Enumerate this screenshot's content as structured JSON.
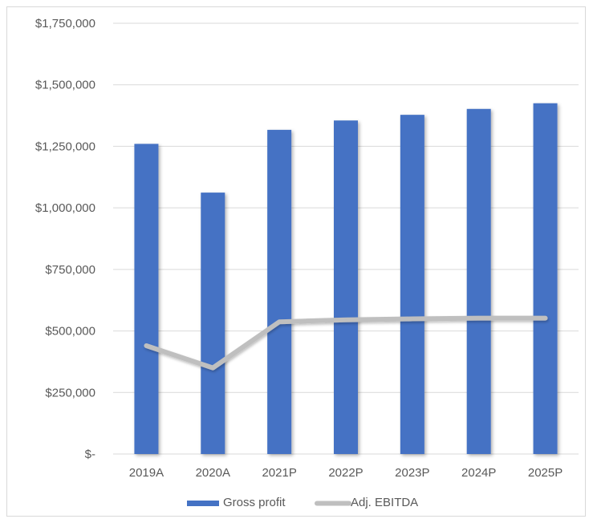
{
  "chart_data": {
    "type": "bar",
    "title": "",
    "xlabel": "",
    "ylabel": "",
    "categories": [
      "2019A",
      "2020A",
      "2021P",
      "2022P",
      "2023P",
      "2024P",
      "2025P"
    ],
    "ylim": [
      0,
      1750000
    ],
    "yticks": [
      0,
      250000,
      500000,
      750000,
      1000000,
      1250000,
      1500000,
      1750000
    ],
    "ytick_labels": [
      "$-",
      "$250,000",
      "$500,000",
      "$750,000",
      "$1,000,000",
      "$1,250,000",
      "$1,500,000",
      "$1,750,000"
    ],
    "grid": true,
    "legend_position": "bottom",
    "series": [
      {
        "name": "Gross profit",
        "type": "bar",
        "color": "#4472c4",
        "values": [
          1260000,
          1062000,
          1317000,
          1355000,
          1378000,
          1402000,
          1425000
        ]
      },
      {
        "name": "Adj. EBITDA",
        "type": "line",
        "color": "#bfbfbf",
        "values": [
          440000,
          350000,
          537000,
          545000,
          549000,
          552000,
          552000
        ]
      }
    ]
  }
}
